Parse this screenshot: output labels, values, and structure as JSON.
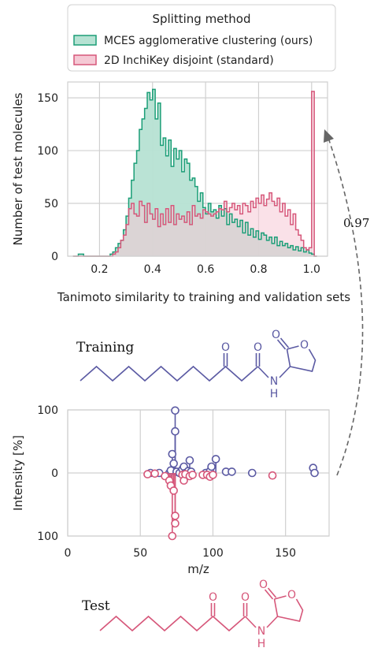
{
  "chart_data": [
    {
      "type": "histogram",
      "xlabel": "Tanimoto similarity to training and validation sets",
      "ylabel": "Number of test molecules",
      "xlim": [
        0.08,
        1.06
      ],
      "ylim": [
        0,
        165
      ],
      "xticks": [
        "0.2",
        "0.4",
        "0.6",
        "0.8",
        "1.0"
      ],
      "yticks": [
        "0",
        "50",
        "100",
        "150"
      ],
      "grid": true,
      "legend": {
        "title": "Splitting method",
        "placement": "top",
        "entries": [
          "MCES agglomerative clustering (ours)",
          "2D InchiKey disjoint (standard)"
        ]
      },
      "bin_start": 0.1,
      "bin_width": 0.01,
      "series": [
        {
          "name": "MCES agglomerative clustering (ours)",
          "color": "#1b9e77",
          "fill": "#b6e2d3",
          "values": [
            0,
            0,
            2,
            2,
            0,
            0,
            0,
            0,
            0,
            0,
            0,
            0,
            0,
            0,
            2,
            4,
            8,
            12,
            15,
            25,
            38,
            55,
            72,
            88,
            100,
            120,
            130,
            140,
            155,
            148,
            158,
            130,
            145,
            105,
            112,
            95,
            110,
            85,
            102,
            92,
            100,
            80,
            92,
            88,
            72,
            74,
            66,
            52,
            60,
            46,
            40,
            50,
            42,
            44,
            36,
            48,
            38,
            45,
            30,
            40,
            32,
            35,
            28,
            34,
            22,
            32,
            20,
            26,
            18,
            24,
            16,
            22,
            20,
            15,
            18,
            12,
            18,
            10,
            14,
            10,
            12,
            8,
            10,
            6,
            9,
            5,
            8,
            4,
            6,
            3,
            2,
            0
          ]
        },
        {
          "name": "2D InchiKey disjoint (standard)",
          "color": "#d6577a",
          "fill": "#f5c9d5",
          "values": [
            0,
            0,
            0,
            0,
            0,
            0,
            0,
            0,
            0,
            0,
            0,
            0,
            0,
            0,
            0,
            2,
            4,
            8,
            15,
            20,
            30,
            45,
            50,
            40,
            38,
            52,
            48,
            32,
            50,
            40,
            35,
            45,
            28,
            40,
            30,
            45,
            32,
            48,
            30,
            40,
            35,
            38,
            32,
            42,
            30,
            48,
            38,
            40,
            36,
            44,
            42,
            40,
            38,
            40,
            42,
            45,
            44,
            52,
            42,
            46,
            50,
            44,
            48,
            40,
            50,
            48,
            42,
            52,
            46,
            55,
            50,
            58,
            48,
            54,
            60,
            52,
            48,
            55,
            42,
            50,
            38,
            44,
            30,
            40,
            25,
            20,
            15,
            8,
            6,
            8,
            156,
            0
          ]
        }
      ],
      "annotation": {
        "text": "0.97"
      }
    },
    {
      "type": "mirror_spectrum",
      "xlabel": "m/z",
      "ylabel": "Intensity [%]",
      "xlim": [
        0,
        180
      ],
      "ylim": [
        -100,
        100
      ],
      "xticks": [
        "0",
        "50",
        "100",
        "150"
      ],
      "yticks": [
        "100",
        "0",
        "100"
      ],
      "grid": true,
      "series": [
        {
          "name": "Training",
          "color": "#5b5aa3",
          "points": [
            [
              57,
              0
            ],
            [
              63,
              0
            ],
            [
              70,
              0
            ],
            [
              71,
              4
            ],
            [
              72,
              30
            ],
            [
              73,
              15
            ],
            [
              74,
              99
            ],
            [
              74,
              66
            ],
            [
              75,
              2
            ],
            [
              77,
              0
            ],
            [
              79,
              6
            ],
            [
              80,
              10
            ],
            [
              81,
              0
            ],
            [
              83,
              3
            ],
            [
              84,
              20
            ],
            [
              85,
              2
            ],
            [
              95,
              0
            ],
            [
              98,
              3
            ],
            [
              99,
              10
            ],
            [
              102,
              22
            ],
            [
              109,
              2
            ],
            [
              113,
              2
            ],
            [
              127,
              0
            ],
            [
              169,
              8
            ],
            [
              170,
              0
            ]
          ]
        },
        {
          "name": "Test",
          "color": "#d6577a",
          "points": [
            [
              55,
              -2
            ],
            [
              60,
              -1
            ],
            [
              67,
              -5
            ],
            [
              70,
              -12
            ],
            [
              71,
              -20
            ],
            [
              72,
              -100
            ],
            [
              73,
              -28
            ],
            [
              74,
              -68
            ],
            [
              74,
              -80
            ],
            [
              79,
              -3
            ],
            [
              80,
              -12
            ],
            [
              81,
              -2
            ],
            [
              84,
              -5
            ],
            [
              86,
              -3
            ],
            [
              93,
              -3
            ],
            [
              96,
              -3
            ],
            [
              98,
              -6
            ],
            [
              100,
              -3
            ],
            [
              141,
              -4
            ]
          ]
        }
      ]
    }
  ],
  "molecules": {
    "training_label": "Training",
    "test_label": "Test",
    "atom_O": "O",
    "atom_N": "N",
    "atom_H": "H"
  }
}
